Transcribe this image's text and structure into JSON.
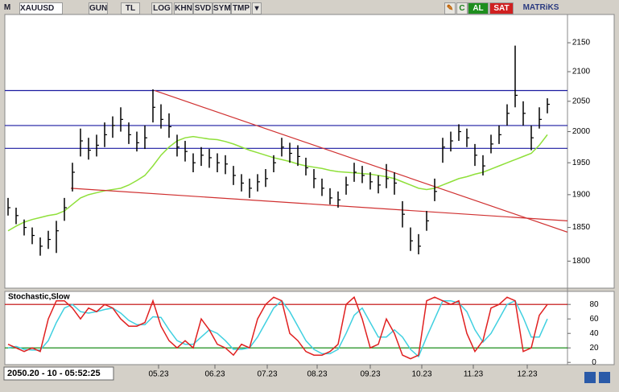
{
  "toolbar": {
    "logo": "M",
    "symbol": "XAUUSD",
    "buttons": [
      "GUN",
      "TL",
      "LOG",
      "KHN",
      "SVD",
      "SYM",
      "TMP"
    ],
    "buy": "AL",
    "sell": "SAT",
    "brand": "MATRiKS"
  },
  "status": "2050.20 - 10 - 05:52:25",
  "chart_data": [
    {
      "type": "ohlc",
      "log_scale": true,
      "color": "#000000",
      "x": [
        0,
        1,
        2,
        3,
        4,
        5,
        6,
        7,
        8,
        9,
        10,
        11,
        12,
        13,
        14,
        15,
        16,
        17,
        18,
        19,
        20,
        21,
        22,
        23,
        24,
        25,
        26,
        27,
        28,
        29,
        30,
        31,
        32,
        33,
        34,
        35,
        36,
        37,
        38,
        39,
        40,
        41,
        42,
        43,
        44,
        45,
        46,
        47,
        48,
        49,
        50,
        51,
        52,
        53,
        54,
        55,
        56,
        57,
        58,
        59,
        60,
        61,
        62,
        63,
        64,
        65,
        66,
        67
      ],
      "high": [
        1895,
        1880,
        1862,
        1850,
        1835,
        1845,
        1860,
        1895,
        1950,
        2005,
        1990,
        1995,
        2015,
        2025,
        2040,
        2015,
        2000,
        2010,
        2070,
        2045,
        2030,
        1995,
        1985,
        1965,
        1975,
        1972,
        1965,
        1962,
        1945,
        1932,
        1925,
        1932,
        1940,
        1962,
        1990,
        1982,
        1978,
        1958,
        1940,
        1925,
        1910,
        1905,
        1928,
        1950,
        1945,
        1935,
        1930,
        1948,
        1935,
        1890,
        1850,
        1840,
        1875,
        1925,
        1990,
        2000,
        2012,
        2005,
        1980,
        1962,
        1995,
        2010,
        2045,
        2145,
        2050,
        2010,
        2040,
        2055
      ],
      "low": [
        1868,
        1855,
        1838,
        1825,
        1808,
        1818,
        1812,
        1860,
        1905,
        1960,
        1955,
        1960,
        1975,
        1990,
        2000,
        1980,
        1968,
        1972,
        2015,
        2005,
        1990,
        1960,
        1952,
        1935,
        1945,
        1942,
        1935,
        1932,
        1915,
        1905,
        1895,
        1905,
        1912,
        1935,
        1960,
        1950,
        1945,
        1930,
        1910,
        1898,
        1885,
        1880,
        1900,
        1920,
        1918,
        1908,
        1902,
        1910,
        1900,
        1850,
        1815,
        1810,
        1845,
        1890,
        1950,
        1968,
        1985,
        1975,
        1945,
        1930,
        1965,
        1980,
        2010,
        2040,
        2010,
        1970,
        2005,
        2030
      ],
      "close": [
        1880,
        1868,
        1850,
        1838,
        1822,
        1832,
        1845,
        1880,
        1935,
        1985,
        1970,
        1978,
        1995,
        2010,
        2020,
        1995,
        1982,
        1990,
        2040,
        2020,
        2008,
        1975,
        1968,
        1950,
        1962,
        1958,
        1950,
        1948,
        1930,
        1918,
        1910,
        1920,
        1925,
        1950,
        1975,
        1965,
        1960,
        1942,
        1925,
        1910,
        1895,
        1892,
        1915,
        1935,
        1930,
        1920,
        1915,
        1925,
        1918,
        1870,
        1830,
        1822,
        1860,
        1905,
        1975,
        1985,
        2000,
        1990,
        1962,
        1945,
        1980,
        1995,
        2030,
        2060,
        2030,
        1990,
        2020,
        2045
      ],
      "moving_average": {
        "color": "#8fe03a",
        "values": [
          1845,
          1852,
          1858,
          1862,
          1865,
          1868,
          1870,
          1875,
          1885,
          1895,
          1900,
          1903,
          1906,
          1908,
          1910,
          1915,
          1922,
          1930,
          1945,
          1962,
          1975,
          1985,
          1990,
          1992,
          1990,
          1988,
          1987,
          1984,
          1980,
          1975,
          1970,
          1966,
          1962,
          1958,
          1955,
          1952,
          1948,
          1945,
          1943,
          1941,
          1938,
          1936,
          1935,
          1934,
          1933,
          1932,
          1930,
          1928,
          1925,
          1920,
          1915,
          1910,
          1908,
          1910,
          1915,
          1920,
          1925,
          1928,
          1932,
          1935,
          1940,
          1945,
          1950,
          1955,
          1960,
          1965,
          1978,
          1995
        ]
      },
      "levels": [
        {
          "value": 2068,
          "color": "#1a1aa0"
        },
        {
          "value": 2010,
          "color": "#1a1aa0"
        },
        {
          "value": 1973,
          "color": "#1a1aa0"
        }
      ],
      "trendlines": [
        {
          "color": "#d03030",
          "x": [
            18.2,
            69.5
          ],
          "values": [
            2068,
            1843
          ]
        },
        {
          "color": "#d03030",
          "x": [
            7.8,
            69.5
          ],
          "values": [
            1910,
            1860
          ]
        }
      ],
      "xlim": [
        -0.4,
        69.5
      ],
      "ylim": [
        1762,
        2200
      ],
      "yticks": [
        1800,
        1850,
        1900,
        1950,
        2000,
        2050,
        2100,
        2150
      ],
      "xticks": [
        {
          "value": 18.7,
          "label": "05.23"
        },
        {
          "value": 25.7,
          "label": "06.23"
        },
        {
          "value": 32.2,
          "label": "07.23"
        },
        {
          "value": 38.4,
          "label": "08.23"
        },
        {
          "value": 45,
          "label": "09.23"
        },
        {
          "value": 51.4,
          "label": "10.23"
        },
        {
          "value": 57.8,
          "label": "11.23"
        },
        {
          "value": 64.5,
          "label": "12.23"
        }
      ]
    },
    {
      "type": "line",
      "title": "Stochastic,Slow",
      "series": [
        {
          "color": "#e02020",
          "values": [
            25,
            20,
            15,
            20,
            15,
            60,
            85,
            85,
            75,
            60,
            75,
            70,
            80,
            75,
            60,
            50,
            50,
            55,
            85,
            50,
            30,
            20,
            30,
            20,
            60,
            45,
            25,
            20,
            10,
            25,
            20,
            60,
            80,
            90,
            85,
            40,
            30,
            15,
            10,
            10,
            15,
            25,
            80,
            90,
            60,
            20,
            25,
            60,
            40,
            10,
            5,
            10,
            85,
            90,
            85,
            80,
            85,
            40,
            15,
            30,
            75,
            80,
            90,
            85,
            15,
            20,
            65,
            80
          ]
        },
        {
          "color": "#40d0e0",
          "values": [
            20,
            22,
            18,
            17,
            17,
            30,
            55,
            75,
            80,
            70,
            68,
            70,
            73,
            75,
            68,
            58,
            52,
            52,
            63,
            62,
            45,
            30,
            25,
            25,
            35,
            45,
            40,
            30,
            18,
            18,
            20,
            35,
            55,
            75,
            85,
            70,
            50,
            30,
            18,
            12,
            12,
            18,
            40,
            65,
            75,
            55,
            35,
            35,
            45,
            35,
            18,
            8,
            35,
            60,
            85,
            85,
            82,
            70,
            45,
            28,
            40,
            60,
            80,
            85,
            62,
            35,
            35,
            60
          ]
        }
      ],
      "levels": [
        {
          "value": 80,
          "color": "#c00000"
        },
        {
          "value": 20,
          "color": "#008000"
        }
      ],
      "xlim": [
        -0.4,
        69.5
      ],
      "ylim": [
        -2,
        98
      ],
      "yticks": [
        0,
        20,
        40,
        60,
        80
      ]
    }
  ]
}
